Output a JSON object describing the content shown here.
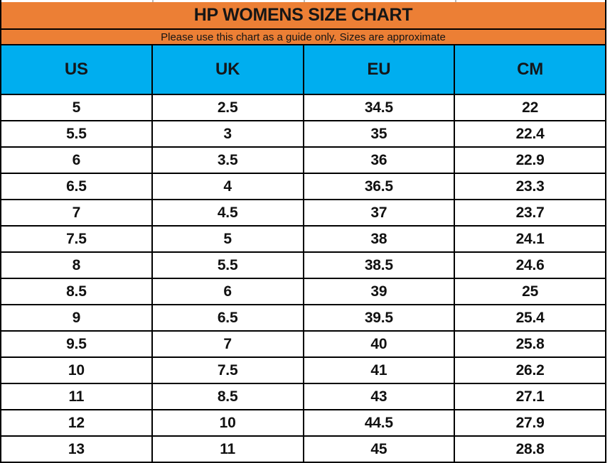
{
  "colors": {
    "title_fill": "#EC7F35",
    "column_header_fill": "#00AEEF",
    "border": "#000000",
    "text": "#111111",
    "background": "#FFFFFF"
  },
  "chart_data": {
    "type": "table",
    "title": "HP WOMENS SIZE CHART",
    "subtitle": "Please use this chart as a guide only. Sizes are approximate",
    "columns": [
      "US",
      "UK",
      "EU",
      "CM"
    ],
    "rows": [
      [
        "5",
        "2.5",
        "34.5",
        "22"
      ],
      [
        "5.5",
        "3",
        "35",
        "22.4"
      ],
      [
        "6",
        "3.5",
        "36",
        "22.9"
      ],
      [
        "6.5",
        "4",
        "36.5",
        "23.3"
      ],
      [
        "7",
        "4.5",
        "37",
        "23.7"
      ],
      [
        "7.5",
        "5",
        "38",
        "24.1"
      ],
      [
        "8",
        "5.5",
        "38.5",
        "24.6"
      ],
      [
        "8.5",
        "6",
        "39",
        "25"
      ],
      [
        "9",
        "6.5",
        "39.5",
        "25.4"
      ],
      [
        "9.5",
        "7",
        "40",
        "25.8"
      ],
      [
        "10",
        "7.5",
        "41",
        "26.2"
      ],
      [
        "11",
        "8.5",
        "43",
        "27.1"
      ],
      [
        "12",
        "10",
        "44.5",
        "27.9"
      ],
      [
        "13",
        "11",
        "45",
        "28.8"
      ]
    ],
    "layout": {
      "grid": "on",
      "header_rows": [
        "title",
        "subtitle",
        "column-headers"
      ],
      "alignment": "center"
    }
  }
}
